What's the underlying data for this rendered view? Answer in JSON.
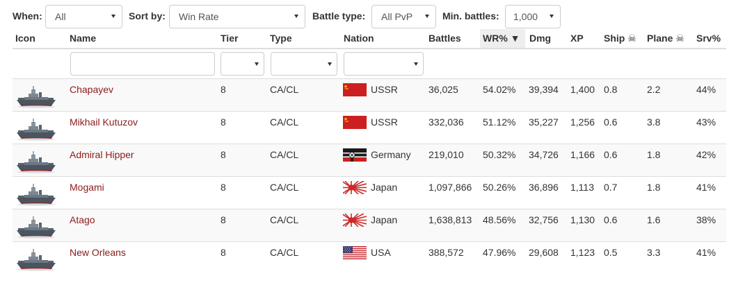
{
  "filters": {
    "when": {
      "label": "When:",
      "value": "All"
    },
    "sort_by": {
      "label": "Sort by:",
      "value": "Win Rate"
    },
    "battle_type": {
      "label": "Battle type:",
      "value": "All PvP"
    },
    "min_battles": {
      "label": "Min. battles:",
      "value": "1,000"
    }
  },
  "columns": {
    "icon": "Icon",
    "name": "Name",
    "tier": "Tier",
    "type": "Type",
    "nation": "Nation",
    "battles": "Battles",
    "wr": "WR% ▼",
    "dmg": "Dmg",
    "xp": "XP",
    "ship": "Ship ☠",
    "plane": "Plane ☠",
    "srv": "Srv%"
  },
  "rows": [
    {
      "icon": "warship-icon",
      "name": "Chapayev",
      "tier": "8",
      "type": "CA/CL",
      "flag": "ussr-flag-icon",
      "nation": "USSR",
      "battles": "36,025",
      "wr": "54.02%",
      "dmg": "39,394",
      "xp": "1,400",
      "ship": "0.8",
      "plane": "2.2",
      "srv": "44%"
    },
    {
      "icon": "warship-icon",
      "name": "Mikhail Kutuzov",
      "tier": "8",
      "type": "CA/CL",
      "flag": "ussr-flag-icon",
      "nation": "USSR",
      "battles": "332,036",
      "wr": "51.12%",
      "dmg": "35,227",
      "xp": "1,256",
      "ship": "0.6",
      "plane": "3.8",
      "srv": "43%"
    },
    {
      "icon": "warship-icon",
      "name": "Admiral Hipper",
      "tier": "8",
      "type": "CA/CL",
      "flag": "germany-flag-icon",
      "nation": "Germany",
      "battles": "219,010",
      "wr": "50.32%",
      "dmg": "34,726",
      "xp": "1,166",
      "ship": "0.6",
      "plane": "1.8",
      "srv": "42%"
    },
    {
      "icon": "warship-icon",
      "name": "Mogami",
      "tier": "8",
      "type": "CA/CL",
      "flag": "japan-flag-icon",
      "nation": "Japan",
      "battles": "1,097,866",
      "wr": "50.26%",
      "dmg": "36,896",
      "xp": "1,113",
      "ship": "0.7",
      "plane": "1.8",
      "srv": "41%"
    },
    {
      "icon": "warship-icon",
      "name": "Atago",
      "tier": "8",
      "type": "CA/CL",
      "flag": "japan-flag-icon",
      "nation": "Japan",
      "battles": "1,638,813",
      "wr": "48.56%",
      "dmg": "32,756",
      "xp": "1,130",
      "ship": "0.6",
      "plane": "1.6",
      "srv": "38%"
    },
    {
      "icon": "warship-icon",
      "name": "New Orleans",
      "tier": "8",
      "type": "CA/CL",
      "flag": "usa-flag-icon",
      "nation": "USA",
      "battles": "388,572",
      "wr": "47.96%",
      "dmg": "29,608",
      "xp": "1,123",
      "ship": "0.5",
      "plane": "3.3",
      "srv": "41%"
    }
  ],
  "colors": {
    "name_link": "#8b1a1a",
    "sorted_header_bg": "#eeeeee",
    "striped_row_bg": "#f9f9f9"
  }
}
